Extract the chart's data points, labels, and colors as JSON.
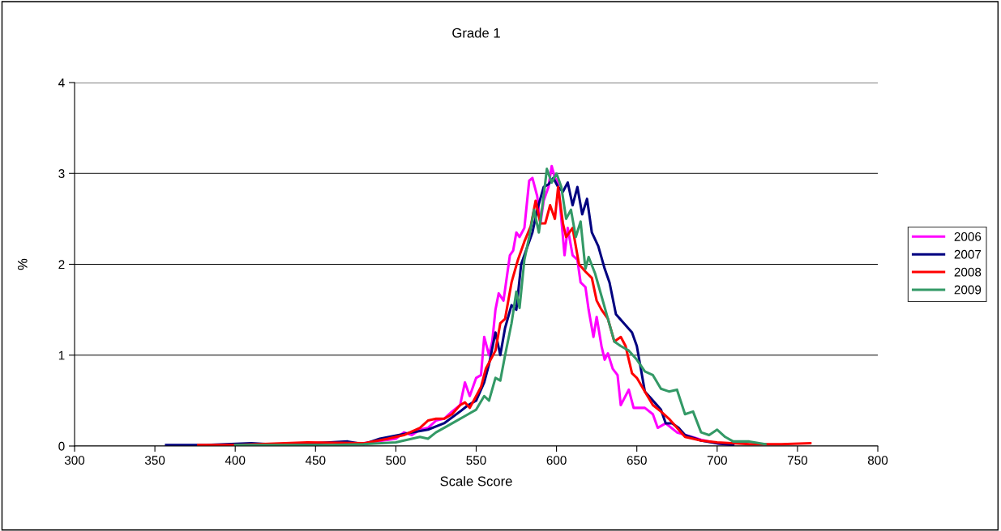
{
  "chart_data": {
    "type": "line",
    "title": "Grade 1",
    "xlabel": "Scale Score",
    "ylabel": "%",
    "xlim": [
      300,
      800
    ],
    "xticks": [
      300,
      350,
      400,
      450,
      500,
      550,
      600,
      650,
      700,
      750,
      800
    ],
    "ylim": [
      0,
      4
    ],
    "yticks": [
      0,
      1,
      2,
      3,
      4
    ],
    "grid": "y",
    "legend": "right",
    "marker": "none",
    "line_style": "solid",
    "series": [
      {
        "name": "2006",
        "color": "#ff00ff",
        "x": [
          480,
          500,
          505,
          510,
          515,
          520,
          525,
          530,
          535,
          540,
          543,
          546,
          550,
          553,
          555,
          558,
          560,
          562,
          564,
          567,
          569,
          571,
          573,
          575,
          577,
          580,
          583,
          585,
          588,
          590,
          592,
          595,
          597,
          599,
          601,
          603,
          605,
          607,
          610,
          613,
          615,
          618,
          620,
          623,
          625,
          628,
          630,
          632,
          635,
          638,
          640,
          645,
          648,
          655,
          660,
          663,
          668,
          675,
          690,
          700,
          710
        ],
        "values": [
          0.03,
          0.08,
          0.15,
          0.12,
          0.18,
          0.2,
          0.28,
          0.3,
          0.38,
          0.45,
          0.7,
          0.55,
          0.75,
          0.78,
          1.2,
          1.0,
          1.15,
          1.5,
          1.68,
          1.6,
          1.85,
          2.1,
          2.15,
          2.35,
          2.3,
          2.4,
          2.92,
          2.95,
          2.75,
          2.45,
          2.7,
          2.85,
          3.08,
          2.95,
          2.9,
          2.5,
          2.1,
          2.4,
          2.1,
          2.05,
          1.8,
          1.75,
          1.5,
          1.2,
          1.42,
          1.1,
          0.95,
          1.02,
          0.85,
          0.78,
          0.45,
          0.62,
          0.42,
          0.42,
          0.35,
          0.2,
          0.25,
          0.15,
          0.07,
          0.03,
          0.01
        ]
      },
      {
        "name": "2007",
        "color": "#000080",
        "x": [
          357,
          380,
          410,
          430,
          470,
          480,
          490,
          510,
          520,
          530,
          540,
          545,
          550,
          555,
          558,
          562,
          565,
          568,
          572,
          575,
          578,
          582,
          585,
          588,
          592,
          595,
          598,
          601,
          604,
          607,
          610,
          613,
          616,
          619,
          622,
          626,
          630,
          633,
          637,
          642,
          647,
          650,
          652,
          655,
          660,
          665,
          668,
          672,
          676,
          680,
          690,
          700,
          710
        ],
        "values": [
          0.01,
          0.01,
          0.03,
          0.01,
          0.05,
          0.02,
          0.08,
          0.15,
          0.18,
          0.25,
          0.38,
          0.45,
          0.5,
          0.7,
          0.9,
          1.25,
          1.0,
          1.3,
          1.55,
          1.5,
          2.0,
          2.2,
          2.35,
          2.6,
          2.85,
          2.88,
          2.95,
          2.85,
          2.8,
          2.9,
          2.65,
          2.85,
          2.55,
          2.72,
          2.35,
          2.2,
          1.95,
          1.8,
          1.45,
          1.35,
          1.25,
          1.1,
          0.9,
          0.6,
          0.5,
          0.4,
          0.25,
          0.25,
          0.2,
          0.12,
          0.06,
          0.03,
          0.01
        ]
      },
      {
        "name": "2008",
        "color": "#ff0000",
        "x": [
          377,
          400,
          445,
          480,
          495,
          505,
          515,
          520,
          525,
          530,
          535,
          540,
          543,
          546,
          550,
          553,
          556,
          559,
          562,
          565,
          568,
          572,
          576,
          580,
          584,
          587,
          590,
          593,
          596,
          599,
          601,
          604,
          606,
          610,
          614,
          618,
          622,
          625,
          628,
          632,
          636,
          640,
          643,
          647,
          650,
          655,
          660,
          665,
          670,
          675,
          680,
          690,
          700,
          720,
          740,
          758
        ],
        "values": [
          0.01,
          0.01,
          0.04,
          0.03,
          0.08,
          0.12,
          0.2,
          0.28,
          0.3,
          0.3,
          0.35,
          0.45,
          0.48,
          0.42,
          0.55,
          0.65,
          0.85,
          0.95,
          1.05,
          1.35,
          1.4,
          1.8,
          2.05,
          2.25,
          2.42,
          2.7,
          2.45,
          2.45,
          2.65,
          2.5,
          2.85,
          2.45,
          2.3,
          2.4,
          2.0,
          1.92,
          1.85,
          1.6,
          1.5,
          1.4,
          1.15,
          1.2,
          1.1,
          0.8,
          0.75,
          0.6,
          0.45,
          0.38,
          0.3,
          0.2,
          0.1,
          0.06,
          0.04,
          0.02,
          0.02,
          0.03
        ]
      },
      {
        "name": "2009",
        "color": "#339966",
        "x": [
          400,
          460,
          480,
          500,
          510,
          515,
          520,
          525,
          530,
          540,
          545,
          550,
          555,
          558,
          562,
          565,
          568,
          572,
          575,
          577,
          580,
          583,
          586,
          589,
          592,
          594,
          597,
          600,
          603,
          606,
          609,
          612,
          615,
          618,
          620,
          624,
          628,
          632,
          636,
          640,
          645,
          650,
          655,
          660,
          665,
          670,
          675,
          680,
          685,
          690,
          695,
          700,
          705,
          710,
          720,
          730
        ],
        "values": [
          0.01,
          0.01,
          0.02,
          0.04,
          0.08,
          0.1,
          0.08,
          0.15,
          0.2,
          0.3,
          0.35,
          0.4,
          0.55,
          0.5,
          0.75,
          0.72,
          1.0,
          1.35,
          1.7,
          1.52,
          2.05,
          2.3,
          2.6,
          2.35,
          2.75,
          3.05,
          2.9,
          3.0,
          2.85,
          2.5,
          2.6,
          2.3,
          2.47,
          1.95,
          2.08,
          1.9,
          1.65,
          1.4,
          1.15,
          1.1,
          1.05,
          0.95,
          0.82,
          0.78,
          0.63,
          0.6,
          0.62,
          0.35,
          0.38,
          0.15,
          0.12,
          0.18,
          0.1,
          0.05,
          0.05,
          0.02
        ]
      }
    ]
  }
}
